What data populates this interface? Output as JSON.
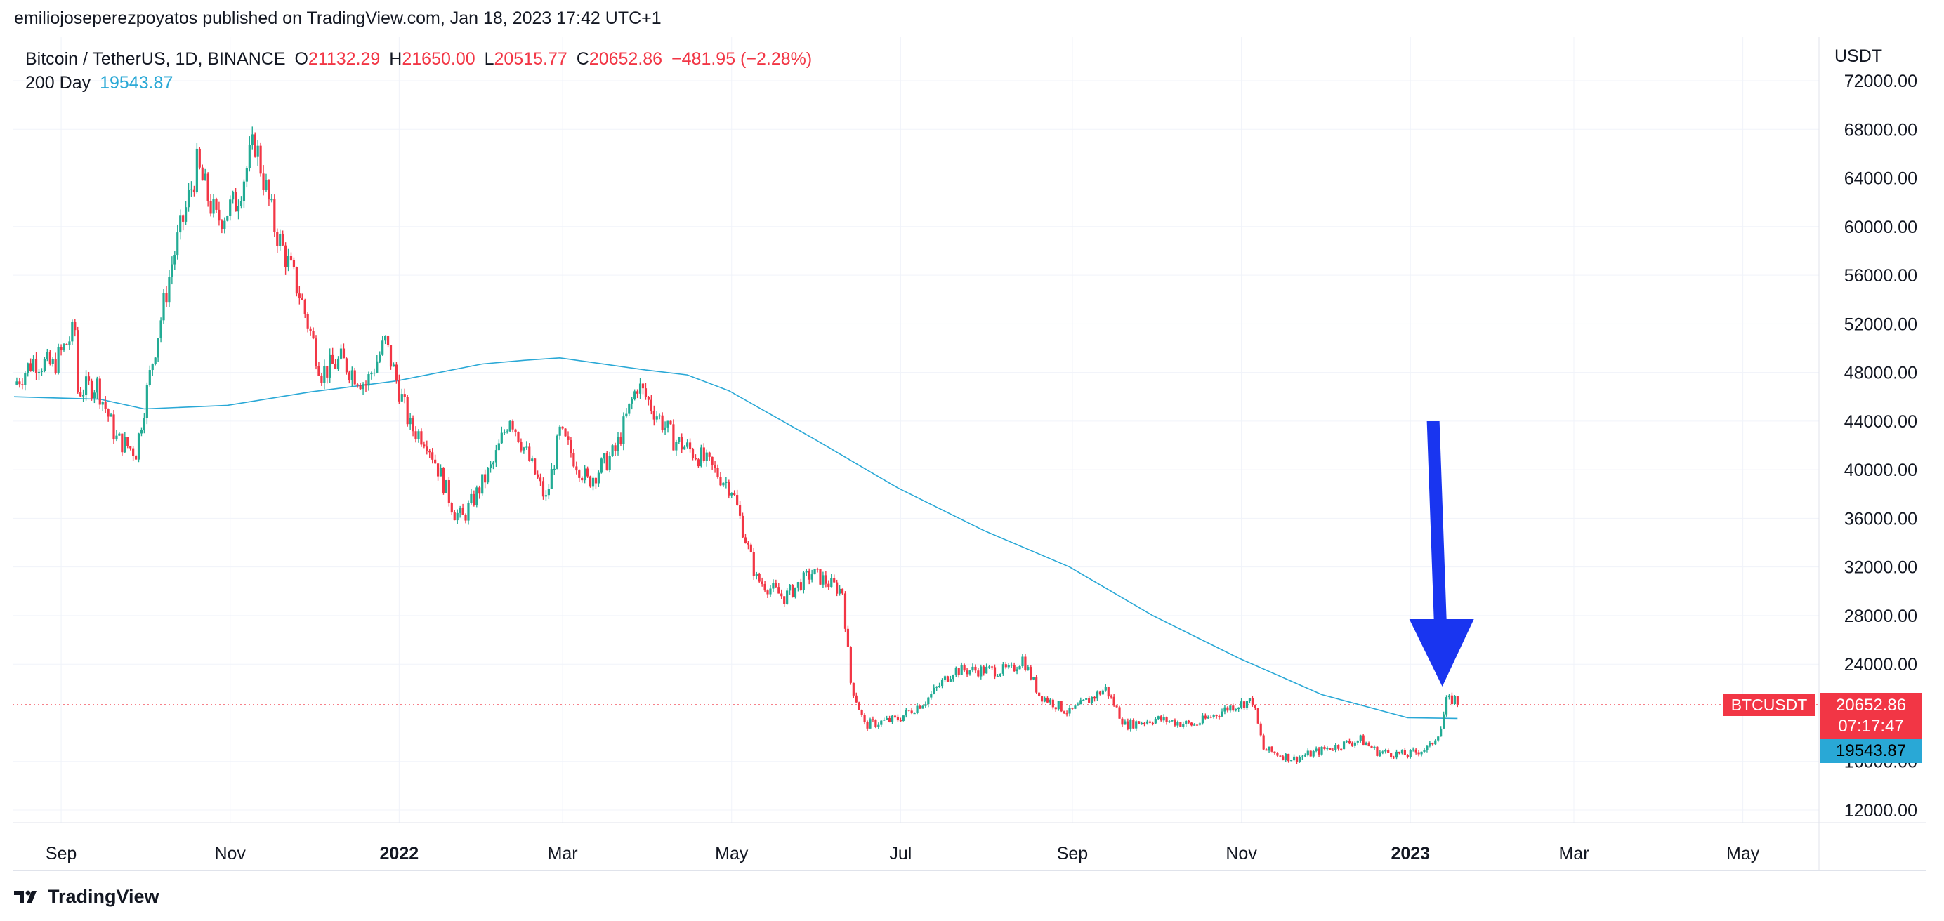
{
  "header": {
    "published": "emiliojoseperezpoyatos published on TradingView.com, Jan 18, 2023 17:42 UTC+1"
  },
  "legend": {
    "symbol": "Bitcoin / TetherUS, 1D, BINANCE",
    "o_label": "O",
    "o_value": "21132.29",
    "h_label": "H",
    "h_value": "21650.00",
    "l_label": "L",
    "l_value": "20515.77",
    "c_label": "C",
    "c_value": "20652.86",
    "change": "−481.95 (−2.28%)",
    "ma_label": "200 Day",
    "ma_value": "19543.87"
  },
  "axis": {
    "currency": "USDT",
    "y_ticks": [
      "72000.00",
      "68000.00",
      "64000.00",
      "60000.00",
      "56000.00",
      "52000.00",
      "48000.00",
      "44000.00",
      "40000.00",
      "36000.00",
      "32000.00",
      "28000.00",
      "24000.00",
      "16000.00",
      "12000.00"
    ],
    "x_ticks": [
      "Sep",
      "Nov",
      "2022",
      "Mar",
      "May",
      "Jul",
      "Sep",
      "Nov",
      "2023",
      "Mar",
      "May"
    ]
  },
  "badges": {
    "ticker": "BTCUSDT",
    "last_price": "20652.86",
    "countdown": "07:17:47",
    "ma_value": "19543.87"
  },
  "footer": {
    "brand": "TradingView"
  },
  "colors": {
    "up": "#22ab94",
    "down": "#f23645",
    "ma": "#29a8d6",
    "arrow": "#1935f0",
    "grid": "#f0f3fa"
  },
  "chart_data": {
    "type": "candlestick",
    "title": "Bitcoin / TetherUS, 1D, BINANCE",
    "ylabel": "USDT",
    "ylim": [
      10000,
      74000
    ],
    "last_price": 20652.86,
    "price_line_style": "dotted",
    "arrow_annotation": {
      "points_to": "2023-01-12",
      "color": "#1935f0"
    },
    "series": [
      {
        "name": "Bitcoin / TetherUS",
        "kind": "close",
        "points": [
          [
            "2021-08-15",
            47000
          ],
          [
            "2021-08-22",
            49000
          ],
          [
            "2021-08-29",
            48500
          ],
          [
            "2021-09-06",
            51500
          ],
          [
            "2021-09-07",
            46500
          ],
          [
            "2021-09-14",
            47000
          ],
          [
            "2021-09-21",
            42500
          ],
          [
            "2021-09-28",
            41500
          ],
          [
            "2021-10-04",
            49000
          ],
          [
            "2021-10-11",
            57000
          ],
          [
            "2021-10-20",
            65000
          ],
          [
            "2021-10-27",
            60500
          ],
          [
            "2021-11-03",
            62000
          ],
          [
            "2021-11-10",
            67000
          ],
          [
            "2021-11-17",
            60000
          ],
          [
            "2021-11-26",
            54500
          ],
          [
            "2021-12-04",
            48000
          ],
          [
            "2021-12-11",
            49000
          ],
          [
            "2021-12-20",
            47000
          ],
          [
            "2021-12-27",
            50500
          ],
          [
            "2022-01-05",
            43500
          ],
          [
            "2022-01-11",
            42500
          ],
          [
            "2022-01-21",
            36500
          ],
          [
            "2022-01-24",
            36000
          ],
          [
            "2022-02-04",
            40500
          ],
          [
            "2022-02-10",
            44500
          ],
          [
            "2022-02-23",
            37500
          ],
          [
            "2022-02-28",
            43000
          ],
          [
            "2022-03-10",
            39000
          ],
          [
            "2022-03-20",
            41500
          ],
          [
            "2022-03-28",
            47000
          ],
          [
            "2022-04-10",
            42500
          ],
          [
            "2022-04-20",
            41000
          ],
          [
            "2022-05-01",
            38500
          ],
          [
            "2022-05-10",
            31000
          ],
          [
            "2022-05-20",
            29500
          ],
          [
            "2022-05-30",
            31500
          ],
          [
            "2022-06-10",
            30000
          ],
          [
            "2022-06-13",
            22500
          ],
          [
            "2022-06-18",
            19000
          ],
          [
            "2022-06-30",
            19500
          ],
          [
            "2022-07-10",
            21000
          ],
          [
            "2022-07-20",
            23500
          ],
          [
            "2022-07-30",
            23500
          ],
          [
            "2022-08-10",
            23500
          ],
          [
            "2022-08-14",
            24500
          ],
          [
            "2022-08-20",
            21500
          ],
          [
            "2022-08-31",
            20000
          ],
          [
            "2022-09-13",
            22000
          ],
          [
            "2022-09-20",
            19000
          ],
          [
            "2022-10-01",
            19500
          ],
          [
            "2022-10-15",
            19000
          ],
          [
            "2022-10-28",
            20500
          ],
          [
            "2022-11-05",
            21000
          ],
          [
            "2022-11-09",
            17000
          ],
          [
            "2022-11-20",
            16200
          ],
          [
            "2022-12-01",
            17000
          ],
          [
            "2022-12-14",
            17800
          ],
          [
            "2022-12-20",
            16800
          ],
          [
            "2022-12-31",
            16550
          ],
          [
            "2023-01-08",
            17200
          ],
          [
            "2023-01-12",
            18800
          ],
          [
            "2023-01-14",
            20900
          ],
          [
            "2023-01-17",
            21150
          ],
          [
            "2023-01-18",
            20652.86
          ]
        ]
      },
      {
        "name": "200 Day",
        "points": [
          [
            "2021-08-15",
            46000
          ],
          [
            "2021-09-15",
            45800
          ],
          [
            "2021-10-01",
            45000
          ],
          [
            "2021-10-31",
            45300
          ],
          [
            "2021-11-30",
            46400
          ],
          [
            "2021-12-31",
            47300
          ],
          [
            "2022-01-31",
            48700
          ],
          [
            "2022-02-15",
            49000
          ],
          [
            "2022-02-28",
            49200
          ],
          [
            "2022-03-31",
            48200
          ],
          [
            "2022-04-15",
            47800
          ],
          [
            "2022-04-30",
            46500
          ],
          [
            "2022-05-31",
            42500
          ],
          [
            "2022-06-30",
            38500
          ],
          [
            "2022-07-31",
            35000
          ],
          [
            "2022-08-31",
            32000
          ],
          [
            "2022-09-30",
            28000
          ],
          [
            "2022-10-31",
            24500
          ],
          [
            "2022-11-30",
            21500
          ],
          [
            "2022-12-31",
            19600
          ],
          [
            "2023-01-18",
            19543.87
          ]
        ]
      }
    ]
  }
}
